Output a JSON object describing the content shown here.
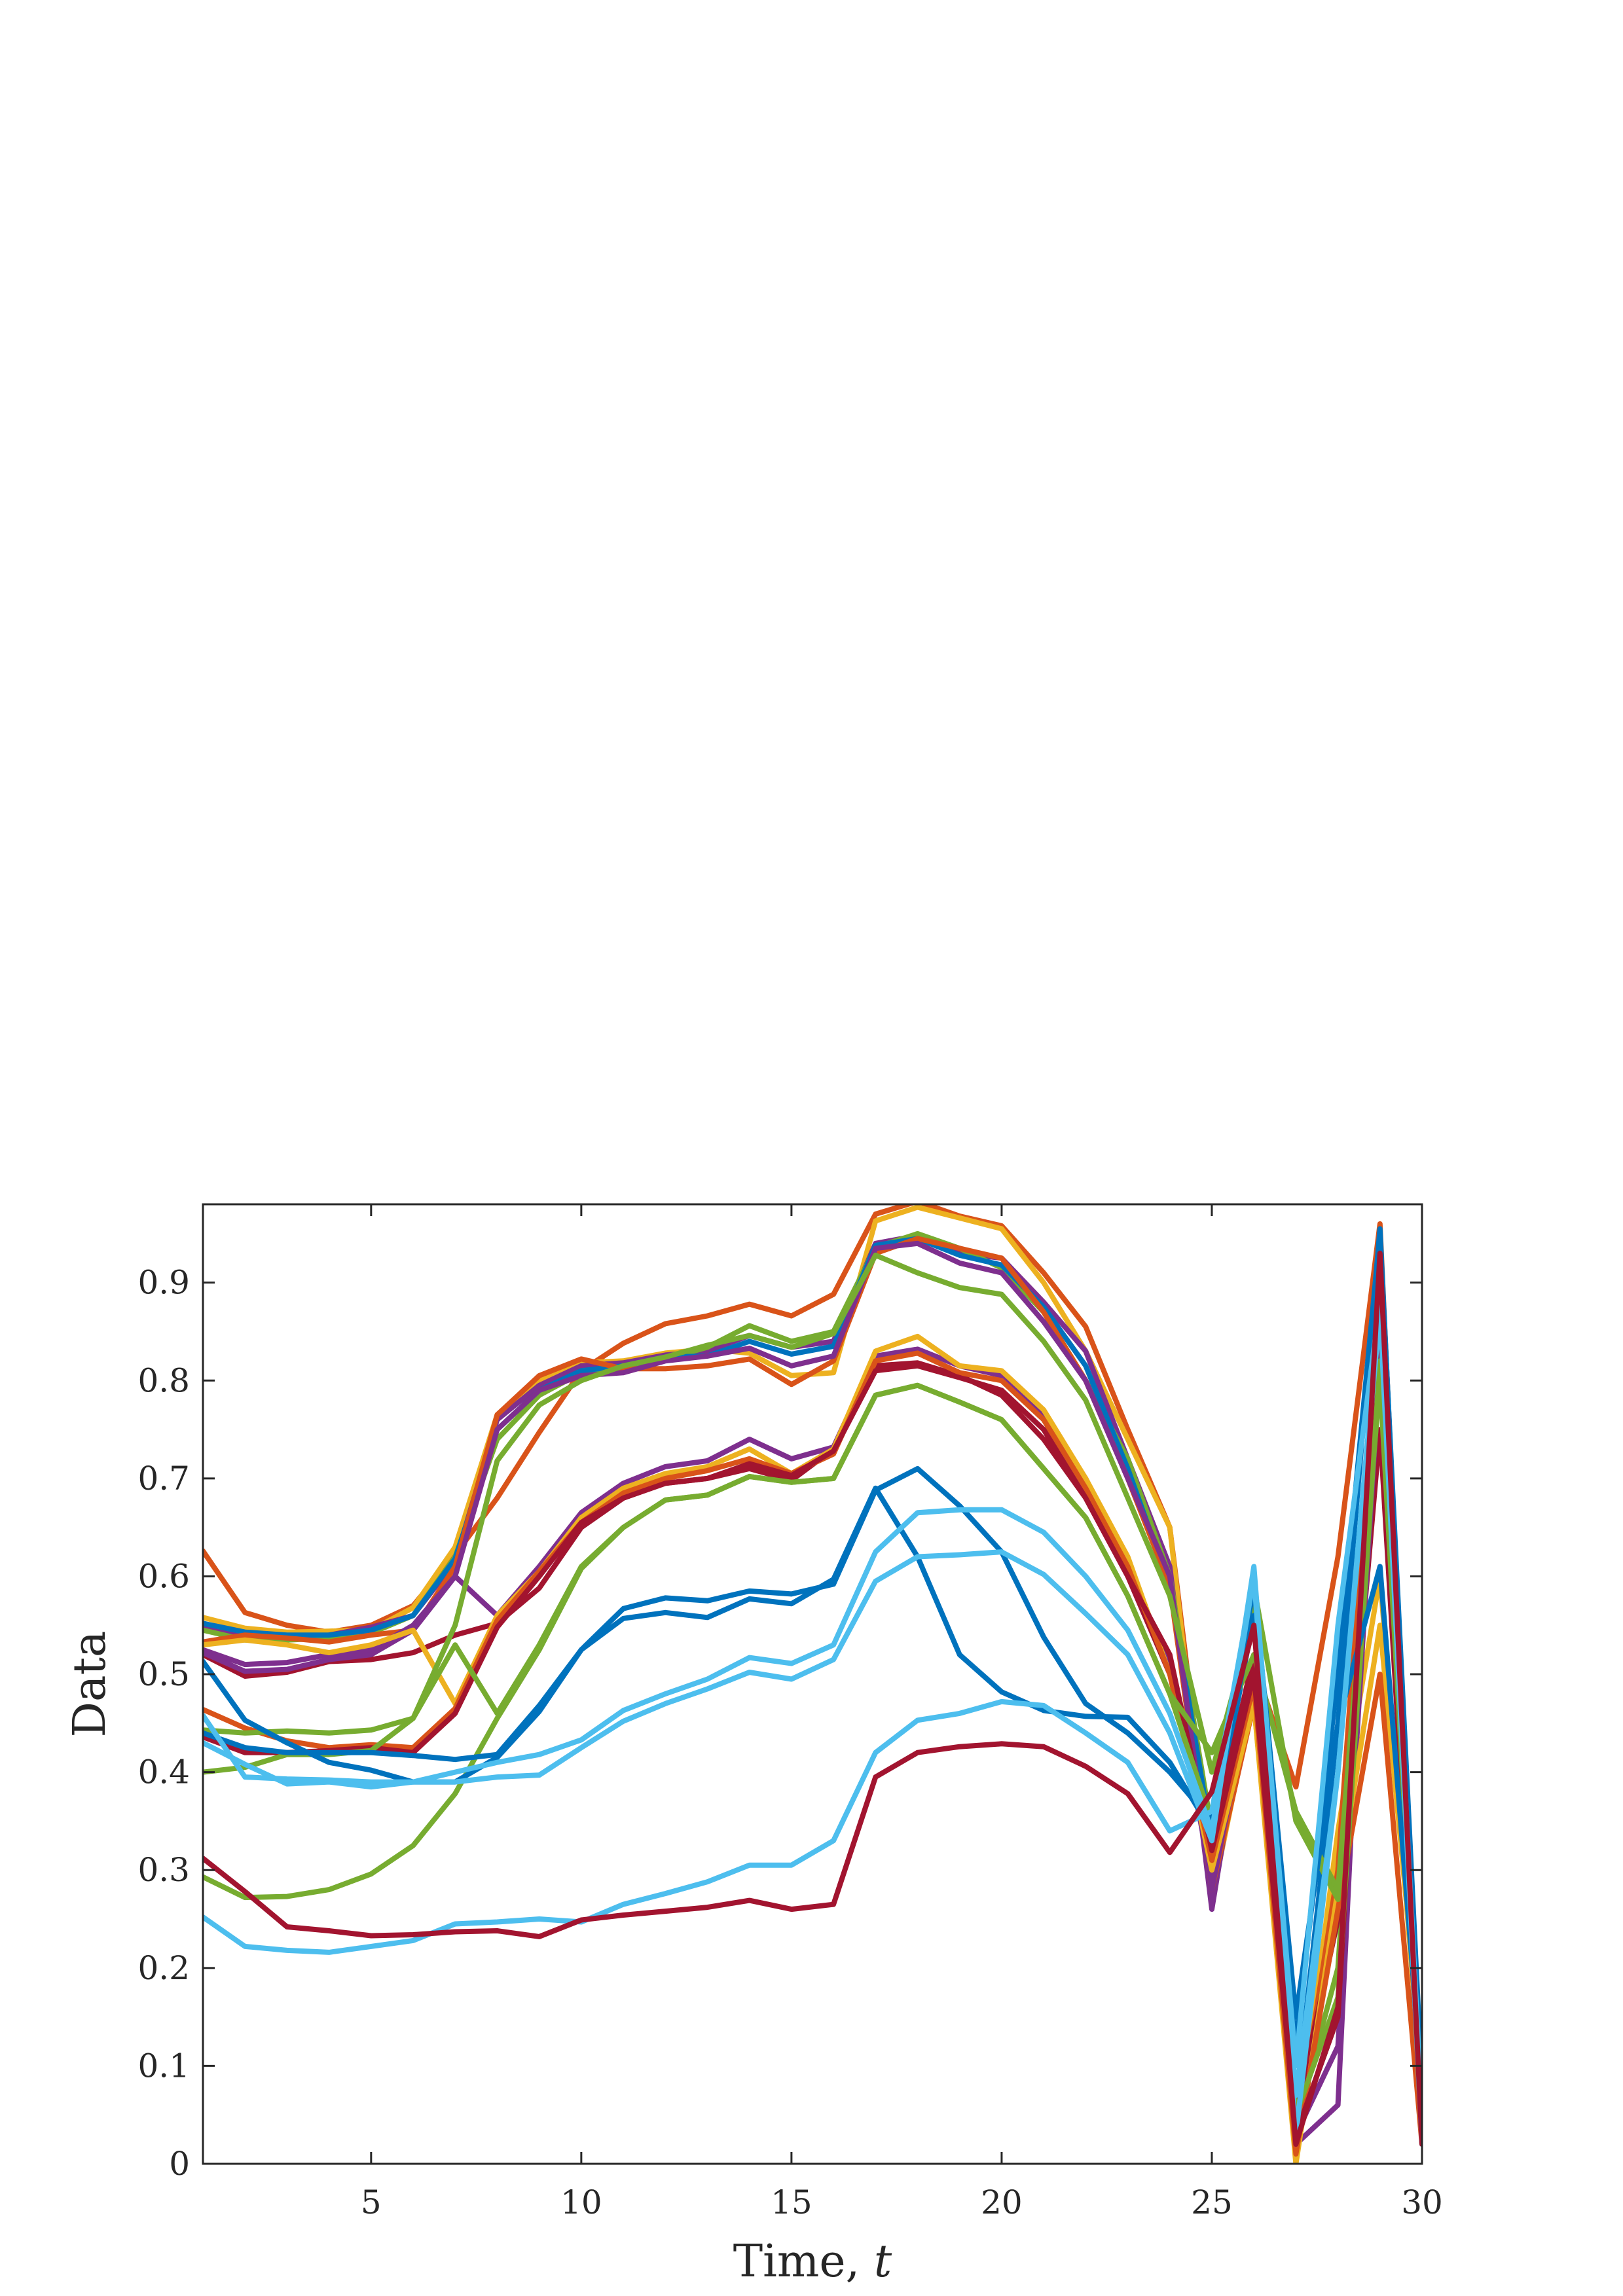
{
  "chart_data": {
    "type": "line",
    "xlabel": "Time, ",
    "xlabel_var": "t",
    "ylabel": "Data",
    "xlim": [
      1,
      30
    ],
    "ylim": [
      0,
      0.98
    ],
    "xticks": [
      5,
      10,
      15,
      20,
      25,
      30
    ],
    "yticks": [
      0,
      0.1,
      0.2,
      0.3,
      0.4,
      0.5,
      0.6,
      0.7,
      0.8,
      0.9
    ],
    "grid": false,
    "x": [
      1,
      2,
      3,
      4,
      5,
      6,
      7,
      8,
      9,
      10,
      11,
      12,
      13,
      14,
      15,
      16,
      17,
      18,
      19,
      20,
      21,
      22,
      23,
      24,
      25,
      26,
      27,
      28,
      29,
      30
    ],
    "series": [
      {
        "color": "#D95319",
        "values": [
          0.626,
          0.563,
          0.55,
          0.543,
          0.55,
          0.57,
          0.622,
          0.68,
          0.747,
          0.81,
          0.838,
          0.858,
          0.866,
          0.878,
          0.866,
          0.888,
          0.97,
          0.983,
          0.968,
          0.958,
          0.91,
          0.855,
          0.75,
          0.65,
          0.3,
          0.51,
          0.385,
          0.62,
          0.96,
          0.03
        ]
      },
      {
        "color": "#EDB120",
        "values": [
          0.558,
          0.547,
          0.543,
          0.544,
          0.545,
          0.568,
          0.63,
          0.765,
          0.8,
          0.818,
          0.82,
          0.828,
          0.832,
          0.828,
          0.805,
          0.808,
          0.963,
          0.977,
          0.966,
          0.955,
          0.9,
          0.83,
          0.74,
          0.65,
          0.27,
          0.48,
          0.01,
          0.34,
          0.6,
          0.07
        ]
      },
      {
        "color": "#7E2F8E",
        "values": [
          0.55,
          0.538,
          0.535,
          0.54,
          0.548,
          0.56,
          0.615,
          0.76,
          0.795,
          0.815,
          0.818,
          0.826,
          0.83,
          0.846,
          0.834,
          0.84,
          0.94,
          0.948,
          0.93,
          0.925,
          0.88,
          0.83,
          0.72,
          0.61,
          0.26,
          0.52,
          0.02,
          0.06,
          0.95,
          0.02
        ]
      },
      {
        "color": "#77AC30",
        "values": [
          0.545,
          0.535,
          0.535,
          0.537,
          0.542,
          0.56,
          0.62,
          0.74,
          0.785,
          0.808,
          0.812,
          0.822,
          0.834,
          0.856,
          0.84,
          0.85,
          0.936,
          0.95,
          0.935,
          0.915,
          0.87,
          0.8,
          0.72,
          0.6,
          0.34,
          0.58,
          0.04,
          0.2,
          0.84,
          0.06
        ]
      },
      {
        "color": "#0072BD",
        "values": [
          0.552,
          0.543,
          0.54,
          0.54,
          0.545,
          0.56,
          0.618,
          0.75,
          0.79,
          0.81,
          0.815,
          0.824,
          0.825,
          0.84,
          0.827,
          0.835,
          0.938,
          0.945,
          0.928,
          0.918,
          0.875,
          0.815,
          0.71,
          0.59,
          0.33,
          0.56,
          0.06,
          0.45,
          0.955,
          0.05
        ]
      },
      {
        "color": "#D95319",
        "values": [
          0.533,
          0.54,
          0.537,
          0.533,
          0.54,
          0.545,
          0.61,
          0.765,
          0.805,
          0.822,
          0.812,
          0.812,
          0.815,
          0.822,
          0.796,
          0.82,
          0.93,
          0.945,
          0.935,
          0.925,
          0.87,
          0.8,
          0.7,
          0.59,
          0.28,
          0.47,
          0.02,
          0.3,
          0.9,
          0.03
        ]
      },
      {
        "color": "#7E2F8E",
        "values": [
          0.525,
          0.51,
          0.512,
          0.52,
          0.525,
          0.55,
          0.6,
          0.75,
          0.79,
          0.805,
          0.808,
          0.82,
          0.825,
          0.833,
          0.815,
          0.825,
          0.935,
          0.94,
          0.92,
          0.91,
          0.86,
          0.8,
          0.7,
          0.6,
          0.28,
          0.5,
          0.03,
          0.15,
          0.85,
          0.03
        ]
      },
      {
        "color": "#A2142F",
        "values": [
          0.52,
          0.498,
          0.502,
          0.513,
          0.515,
          0.522,
          0.54,
          0.552,
          0.588,
          0.65,
          0.68,
          0.695,
          0.7,
          0.71,
          0.698,
          0.73,
          0.815,
          0.818,
          0.805,
          0.785,
          0.74,
          0.68,
          0.6,
          0.5,
          0.33,
          0.52,
          0.05,
          0.25,
          0.75,
          0.04
        ]
      },
      {
        "color": "#7E2F8E",
        "values": [
          0.522,
          0.503,
          0.505,
          0.515,
          0.52,
          0.545,
          0.6,
          0.56,
          0.61,
          0.665,
          0.695,
          0.712,
          0.718,
          0.74,
          0.72,
          0.732,
          0.825,
          0.832,
          0.815,
          0.805,
          0.765,
          0.7,
          0.61,
          0.51,
          0.29,
          0.48,
          0.03,
          0.12,
          0.82,
          0.04
        ]
      },
      {
        "color": "#EDB120",
        "values": [
          0.53,
          0.535,
          0.53,
          0.522,
          0.53,
          0.545,
          0.47,
          0.56,
          0.605,
          0.66,
          0.69,
          0.705,
          0.712,
          0.73,
          0.705,
          0.73,
          0.83,
          0.845,
          0.815,
          0.81,
          0.77,
          0.7,
          0.62,
          0.5,
          0.3,
          0.47,
          0.0,
          0.28,
          0.55,
          0.1
        ]
      },
      {
        "color": "#D95319",
        "values": [
          0.464,
          0.445,
          0.432,
          0.425,
          0.428,
          0.425,
          0.465,
          0.555,
          0.605,
          0.655,
          0.685,
          0.7,
          0.708,
          0.72,
          0.705,
          0.725,
          0.82,
          0.828,
          0.808,
          0.8,
          0.76,
          0.69,
          0.61,
          0.5,
          0.31,
          0.49,
          0.01,
          0.26,
          0.5,
          0.02
        ]
      },
      {
        "color": "#A2142F",
        "values": [
          0.436,
          0.42,
          0.42,
          0.422,
          0.425,
          0.42,
          0.46,
          0.548,
          0.6,
          0.655,
          0.68,
          0.695,
          0.7,
          0.715,
          0.703,
          0.728,
          0.81,
          0.815,
          0.803,
          0.79,
          0.75,
          0.68,
          0.6,
          0.52,
          0.32,
          0.5,
          0.03,
          0.15,
          0.88,
          0.03
        ]
      },
      {
        "color": "#77AC30",
        "values": [
          0.443,
          0.44,
          0.442,
          0.44,
          0.443,
          0.455,
          0.53,
          0.46,
          0.53,
          0.61,
          0.65,
          0.678,
          0.683,
          0.702,
          0.696,
          0.7,
          0.785,
          0.795,
          0.778,
          0.76,
          0.71,
          0.66,
          0.58,
          0.48,
          0.35,
          0.59,
          0.35,
          0.27,
          0.81,
          0.05
        ]
      },
      {
        "color": "#77AC30",
        "values": [
          0.4,
          0.405,
          0.418,
          0.418,
          0.422,
          0.455,
          0.55,
          0.718,
          0.775,
          0.8,
          0.815,
          0.824,
          0.836,
          0.846,
          0.834,
          0.848,
          0.928,
          0.91,
          0.895,
          0.888,
          0.84,
          0.78,
          0.68,
          0.58,
          0.4,
          0.56,
          0.05,
          0.17,
          0.82,
          0.05
        ]
      },
      {
        "color": "#77AC30",
        "values": [
          0.293,
          0.272,
          0.273,
          0.28,
          0.296,
          0.325,
          0.378,
          0.455,
          0.525,
          0.608,
          0.65,
          0.678,
          0.683,
          0.702,
          0.696,
          0.7,
          0.785,
          0.795,
          0.778,
          0.76,
          0.71,
          0.66,
          0.58,
          0.48,
          0.42,
          0.52,
          0.36,
          0.28,
          0.8,
          0.05
        ]
      },
      {
        "color": "#0072BD",
        "values": [
          0.513,
          0.453,
          0.43,
          0.41,
          0.402,
          0.39,
          0.39,
          0.415,
          0.462,
          0.525,
          0.557,
          0.563,
          0.558,
          0.577,
          0.572,
          0.597,
          0.69,
          0.62,
          0.52,
          0.482,
          0.463,
          0.457,
          0.456,
          0.41,
          0.34,
          0.59,
          0.15,
          0.45,
          0.61,
          0.08
        ]
      },
      {
        "color": "#0072BD",
        "values": [
          0.44,
          0.425,
          0.42,
          0.42,
          0.42,
          0.417,
          0.413,
          0.418,
          0.468,
          0.525,
          0.567,
          0.578,
          0.575,
          0.585,
          0.582,
          0.592,
          0.688,
          0.71,
          0.672,
          0.625,
          0.538,
          0.47,
          0.44,
          0.4,
          0.35,
          0.56,
          0.12,
          0.5,
          0.95,
          0.08
        ]
      },
      {
        "color": "#4DBEEE",
        "values": [
          0.458,
          0.395,
          0.393,
          0.392,
          0.39,
          0.39,
          0.4,
          0.41,
          0.418,
          0.433,
          0.463,
          0.48,
          0.495,
          0.517,
          0.511,
          0.53,
          0.625,
          0.665,
          0.668,
          0.668,
          0.645,
          0.6,
          0.545,
          0.46,
          0.34,
          0.6,
          0.1,
          0.55,
          0.88,
          0.05
        ]
      },
      {
        "color": "#4DBEEE",
        "values": [
          0.43,
          0.408,
          0.388,
          0.39,
          0.385,
          0.39,
          0.39,
          0.395,
          0.397,
          0.425,
          0.452,
          0.47,
          0.485,
          0.502,
          0.495,
          0.515,
          0.595,
          0.62,
          0.622,
          0.625,
          0.602,
          0.562,
          0.52,
          0.44,
          0.33,
          0.61,
          0.07,
          0.4,
          0.87,
          0.03
        ]
      },
      {
        "color": "#4DBEEE",
        "values": [
          0.252,
          0.222,
          0.218,
          0.216,
          0.222,
          0.228,
          0.245,
          0.247,
          0.25,
          0.247,
          0.265,
          0.276,
          0.288,
          0.305,
          0.305,
          0.33,
          0.42,
          0.453,
          0.46,
          0.472,
          0.468,
          0.44,
          0.41,
          0.34,
          0.36,
          0.6,
          0.03,
          0.4,
          0.88,
          0.02
        ]
      },
      {
        "color": "#A2142F",
        "values": [
          0.312,
          0.278,
          0.242,
          0.238,
          0.233,
          0.234,
          0.237,
          0.238,
          0.232,
          0.249,
          0.254,
          0.258,
          0.262,
          0.269,
          0.26,
          0.265,
          0.395,
          0.42,
          0.426,
          0.429,
          0.426,
          0.406,
          0.378,
          0.318,
          0.38,
          0.55,
          0.02,
          0.16,
          0.93,
          0.02
        ]
      }
    ]
  }
}
